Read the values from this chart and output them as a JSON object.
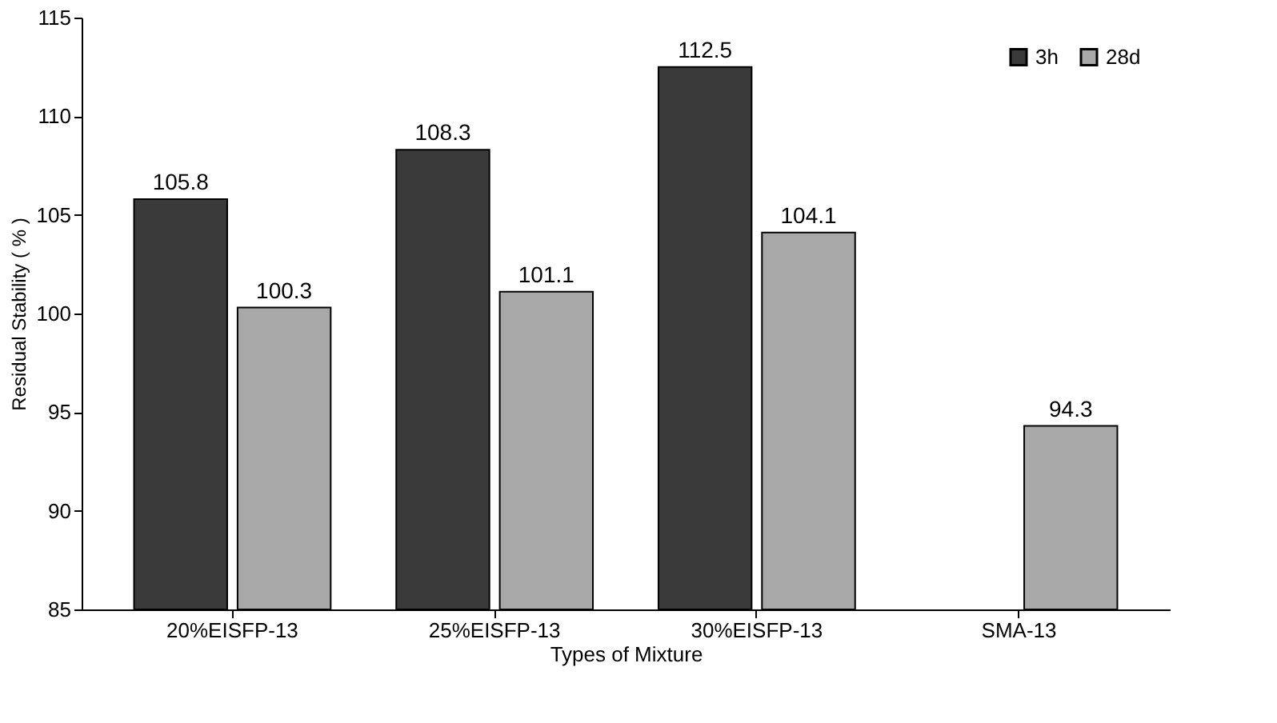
{
  "chart_data": {
    "type": "bar",
    "xlabel": "Types of Mixture",
    "ylabel": "Residual Stability ( % )",
    "categories": [
      "20%EISFP-13",
      "25%EISFP-13",
      "30%EISFP-13",
      "SMA-13"
    ],
    "series": [
      {
        "name": "3h",
        "color": "#3a3a3a",
        "values": [
          105.8,
          108.3,
          112.5,
          null
        ]
      },
      {
        "name": "28d",
        "color": "#a8a8a8",
        "values": [
          100.3,
          101.1,
          104.1,
          94.3
        ]
      }
    ],
    "ylim": [
      85,
      115
    ],
    "yticks": [
      85,
      90,
      95,
      100,
      105,
      110,
      115
    ],
    "data_labels": true,
    "legend": "top right",
    "grid": false
  }
}
